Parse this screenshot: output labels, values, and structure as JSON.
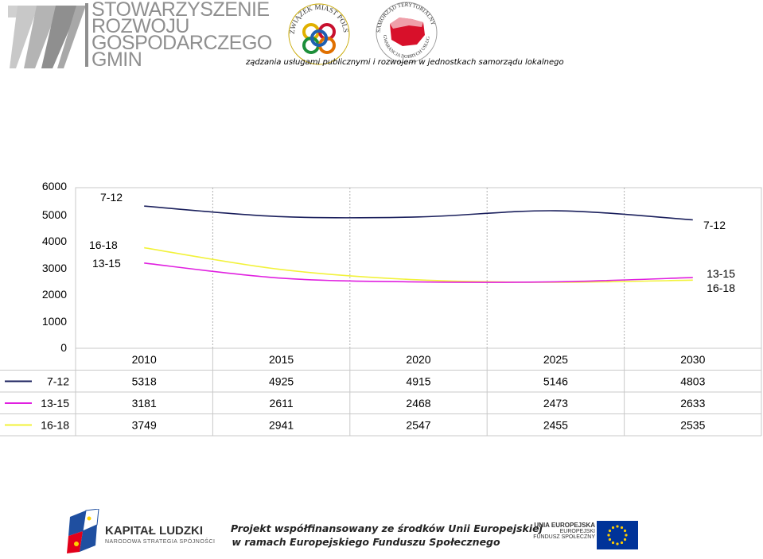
{
  "header": {
    "org_name_lines": [
      "STOWARZYSZENIE",
      "ROZWOJU",
      "GOSPODARCZEGO",
      "GMIN"
    ],
    "seal1_text": "ZWIĄZEK MIAST POLSKICH",
    "seal2_text_top": "SAMORZĄD TERYTORIALNY",
    "seal2_text_bottom": "GWARANCJA DOBRYCH USŁUG",
    "tagline": "ządzania usługami publicznymi i rozwojem w jednostkach samorządu lokalnego"
  },
  "footer": {
    "kl_title": "KAPITAŁ LUDZKI",
    "kl_subtitle": "NARODOWA STRATEGIA SPÓJNOŚCI",
    "project_line1": "Projekt współfinansowany ze środków Unii Europejskiej",
    "project_line2": "w ramach Europejskiego Funduszu Społecznego",
    "eu_line1": "UNIA EUROPEJSKA",
    "eu_line2": "EUROPEJSKI",
    "eu_line3": "FUNDUSZ SPOŁECZNY"
  },
  "chart_data": {
    "type": "line",
    "categories": [
      "2010",
      "2015",
      "2020",
      "2025",
      "2030"
    ],
    "ylim": [
      0,
      6000
    ],
    "yticks": [
      "6000",
      "5000",
      "4000",
      "3000",
      "2000",
      "1000",
      "0"
    ],
    "grid": "vertical dotted",
    "legend": "table-left",
    "series": [
      {
        "name": "7-12",
        "color": "#1a1f5c",
        "values": [
          5318,
          4925,
          4915,
          5146,
          4803
        ],
        "display": [
          "5318",
          "4925",
          "4915",
          "5146",
          "4803"
        ]
      },
      {
        "name": "13-15",
        "color": "#e020e0",
        "values": [
          3181,
          2611,
          2468,
          2473,
          2633
        ],
        "display": [
          "3181",
          "2611",
          "2468",
          "2473",
          "2633"
        ]
      },
      {
        "name": "16-18",
        "color": "#f2f23a",
        "values": [
          3749,
          2941,
          2547,
          2455,
          2535
        ],
        "display": [
          "3749",
          "2941",
          "2547",
          "2455",
          "2535"
        ]
      }
    ],
    "annotations": {
      "left": [
        "7-12",
        "16-18",
        "13-15"
      ],
      "right": [
        "7-12",
        "13-15",
        "16-18"
      ]
    }
  }
}
